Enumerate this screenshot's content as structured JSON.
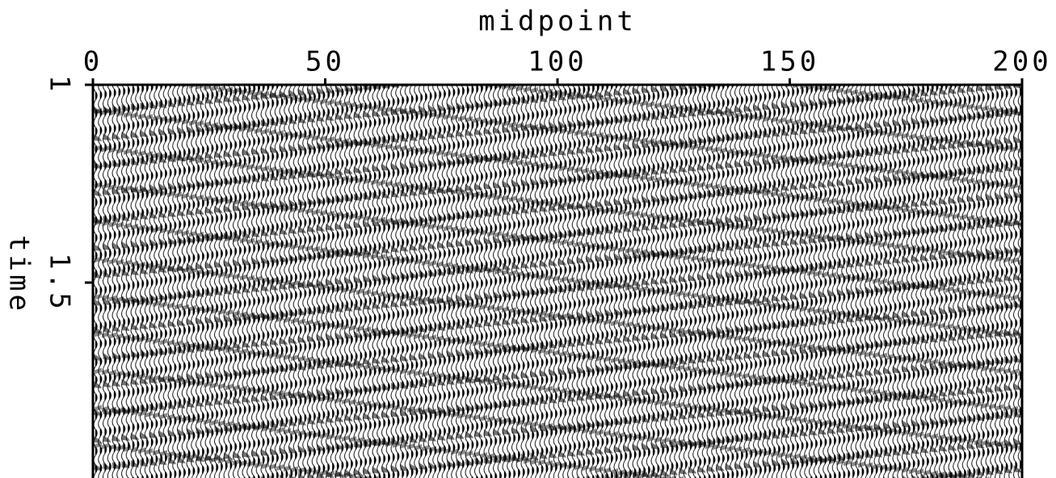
{
  "chart_data": {
    "type": "wiggle",
    "x_label": "midpoint",
    "y_label": "time",
    "xlim": [
      0,
      200
    ],
    "xticks": [
      0,
      50,
      100,
      150,
      200
    ],
    "ylim": [
      1,
      2
    ],
    "yticks": [
      1,
      1.5
    ]
  }
}
